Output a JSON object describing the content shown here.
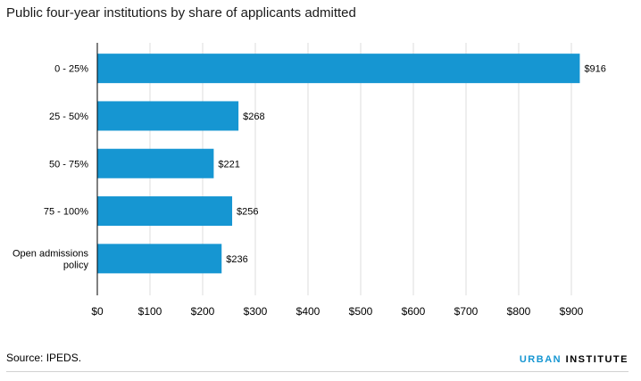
{
  "title": "Public four-year institutions by share of applicants admitted",
  "source": "Source: IPEDS.",
  "brand": {
    "part1": "URBAN",
    "part2": "INSTITUTE"
  },
  "colors": {
    "bar": "#1696d2",
    "grid": "#dcdcdc",
    "axis": "#000000"
  },
  "chart_data": {
    "type": "bar",
    "orientation": "horizontal",
    "categories": [
      [
        "0 - 25%"
      ],
      [
        "25 - 50%"
      ],
      [
        "50 - 75%"
      ],
      [
        "75 - 100%"
      ],
      [
        "Open admissions",
        "policy"
      ]
    ],
    "values": [
      916,
      268,
      221,
      256,
      236
    ],
    "value_labels": [
      "$916",
      "$268",
      "$221",
      "$256",
      "$236"
    ],
    "xlim": [
      0,
      900
    ],
    "xticks": [
      0,
      100,
      200,
      300,
      400,
      500,
      600,
      700,
      800,
      900
    ],
    "xtick_labels": [
      "$0",
      "$100",
      "$200",
      "$300",
      "$400",
      "$500",
      "$600",
      "$700",
      "$800",
      "$900"
    ],
    "grid": true
  }
}
